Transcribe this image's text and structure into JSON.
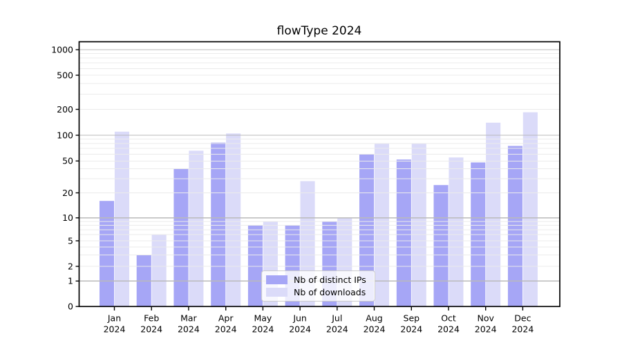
{
  "figure": {
    "background": "#ffffff"
  },
  "chart_data": {
    "type": "bar",
    "title": "flowType 2024",
    "xlabel": "",
    "ylabel": "",
    "categories": [
      "Jan 2024",
      "Feb 2024",
      "Mar 2024",
      "Apr 2024",
      "May 2024",
      "Jun 2024",
      "Jul 2024",
      "Aug 2024",
      "Sep 2024",
      "Oct 2024",
      "Nov 2024",
      "Dec 2024"
    ],
    "series": [
      {
        "name": "Nb of distinct IPs",
        "color": "#a6a6f6",
        "values": [
          16,
          3,
          40,
          82,
          8,
          8,
          9,
          60,
          52,
          25,
          48,
          75
        ]
      },
      {
        "name": "Nb of downloads",
        "color": "#dbdbf9",
        "values": [
          110,
          6,
          66,
          105,
          9,
          28,
          10,
          80,
          80,
          55,
          140,
          185
        ]
      }
    ],
    "y_scale": "log-like (0 shown at baseline)",
    "ylim": [
      0,
      1250
    ],
    "y_ticks": [
      0,
      1,
      2,
      5,
      10,
      20,
      50,
      100,
      200,
      500,
      1000
    ],
    "y_major_gridlines": [
      1,
      10,
      100,
      1000
    ],
    "y_minor_gridlines": [
      2,
      3,
      4,
      5,
      6,
      7,
      8,
      9,
      20,
      30,
      40,
      50,
      60,
      70,
      80,
      90,
      200,
      300,
      400,
      500,
      600,
      700,
      800,
      900
    ],
    "grid": {
      "major": true,
      "minor": true,
      "on_top_of_bars": true
    },
    "legend": {
      "entries": [
        "Nb of distinct IPs",
        "Nb of downloads"
      ],
      "position": "lower center"
    },
    "colors": {
      "major_grid": "#bababa",
      "minor_grid": "#ebebeb",
      "axis": "#000000",
      "text": "#000000"
    }
  }
}
